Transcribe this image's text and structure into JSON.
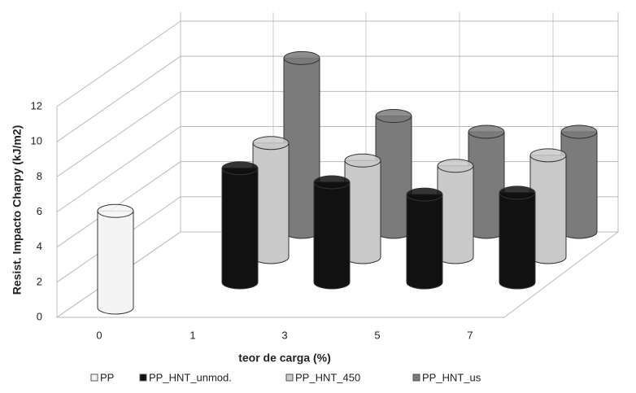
{
  "chart_data": {
    "type": "bar3d",
    "x_label": "teor de carga (%)",
    "y_label": "Resist. Impacto Charpy (kJ/m2)",
    "categories": [
      "0",
      "1",
      "3",
      "5",
      "7"
    ],
    "ylim": [
      0,
      12
    ],
    "yticks": [
      0,
      2,
      4,
      6,
      8,
      10,
      12
    ],
    "grid": true,
    "series": [
      {
        "name": "PP",
        "color": "#f4f4f4",
        "values": [
          5.5,
          null,
          null,
          null,
          null
        ]
      },
      {
        "name": "PP_HNT_unmod.",
        "color": "#111111",
        "values": [
          null,
          6.5,
          5.7,
          5.0,
          5.1
        ]
      },
      {
        "name": "PP_HNT_450",
        "color": "#c9c9c9",
        "values": [
          null,
          6.5,
          5.5,
          5.2,
          5.8
        ]
      },
      {
        "name": "PP_HNT_us",
        "color": "#7b7b7b",
        "values": [
          null,
          9.9,
          6.6,
          5.7,
          5.7
        ]
      }
    ]
  }
}
